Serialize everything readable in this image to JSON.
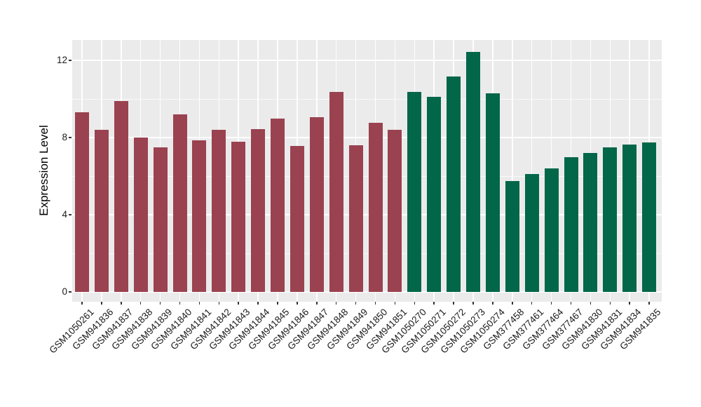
{
  "chart_data": {
    "type": "bar",
    "ylabel": "Expression Level",
    "yticks": [
      0,
      4,
      8,
      12
    ],
    "ytick_labels": [
      "0",
      "4",
      "8",
      "12"
    ],
    "minor_yticks": [
      2,
      6,
      10
    ],
    "ylim": [
      0,
      13.1
    ],
    "grid": true,
    "panel_bg": "#ebebeb",
    "grid_color": "#ffffff",
    "categories": [
      "GSM1050261",
      "GSM941836",
      "GSM941837",
      "GSM941838",
      "GSM941839",
      "GSM941840",
      "GSM941841",
      "GSM941842",
      "GSM941843",
      "GSM941844",
      "GSM941845",
      "GSM941846",
      "GSM941847",
      "GSM941848",
      "GSM941849",
      "GSM941850",
      "GSM941851",
      "GSM1050270",
      "GSM1050271",
      "GSM1050272",
      "GSM1050273",
      "GSM1050274",
      "GSM377458",
      "GSM377461",
      "GSM377464",
      "GSM377467",
      "GSM941830",
      "GSM941831",
      "GSM941834",
      "GSM941835"
    ],
    "values": [
      9.3,
      8.4,
      9.9,
      8.0,
      7.5,
      9.2,
      7.85,
      8.4,
      7.8,
      8.45,
      9.0,
      7.55,
      9.05,
      10.35,
      7.6,
      8.75,
      8.4,
      10.35,
      10.1,
      11.15,
      12.45,
      10.3,
      5.75,
      6.1,
      6.4,
      7.0,
      7.2,
      7.5,
      7.65,
      7.75
    ],
    "groups": [
      "group1",
      "group1",
      "group1",
      "group1",
      "group1",
      "group1",
      "group1",
      "group1",
      "group1",
      "group1",
      "group1",
      "group1",
      "group1",
      "group1",
      "group1",
      "group1",
      "group1",
      "group2",
      "group2",
      "group2",
      "group2",
      "group2",
      "group2",
      "group2",
      "group2",
      "group2",
      "group2",
      "group2",
      "group2",
      "group2"
    ],
    "group_colors": {
      "group1": "#9a4250",
      "group2": "#026649"
    }
  }
}
